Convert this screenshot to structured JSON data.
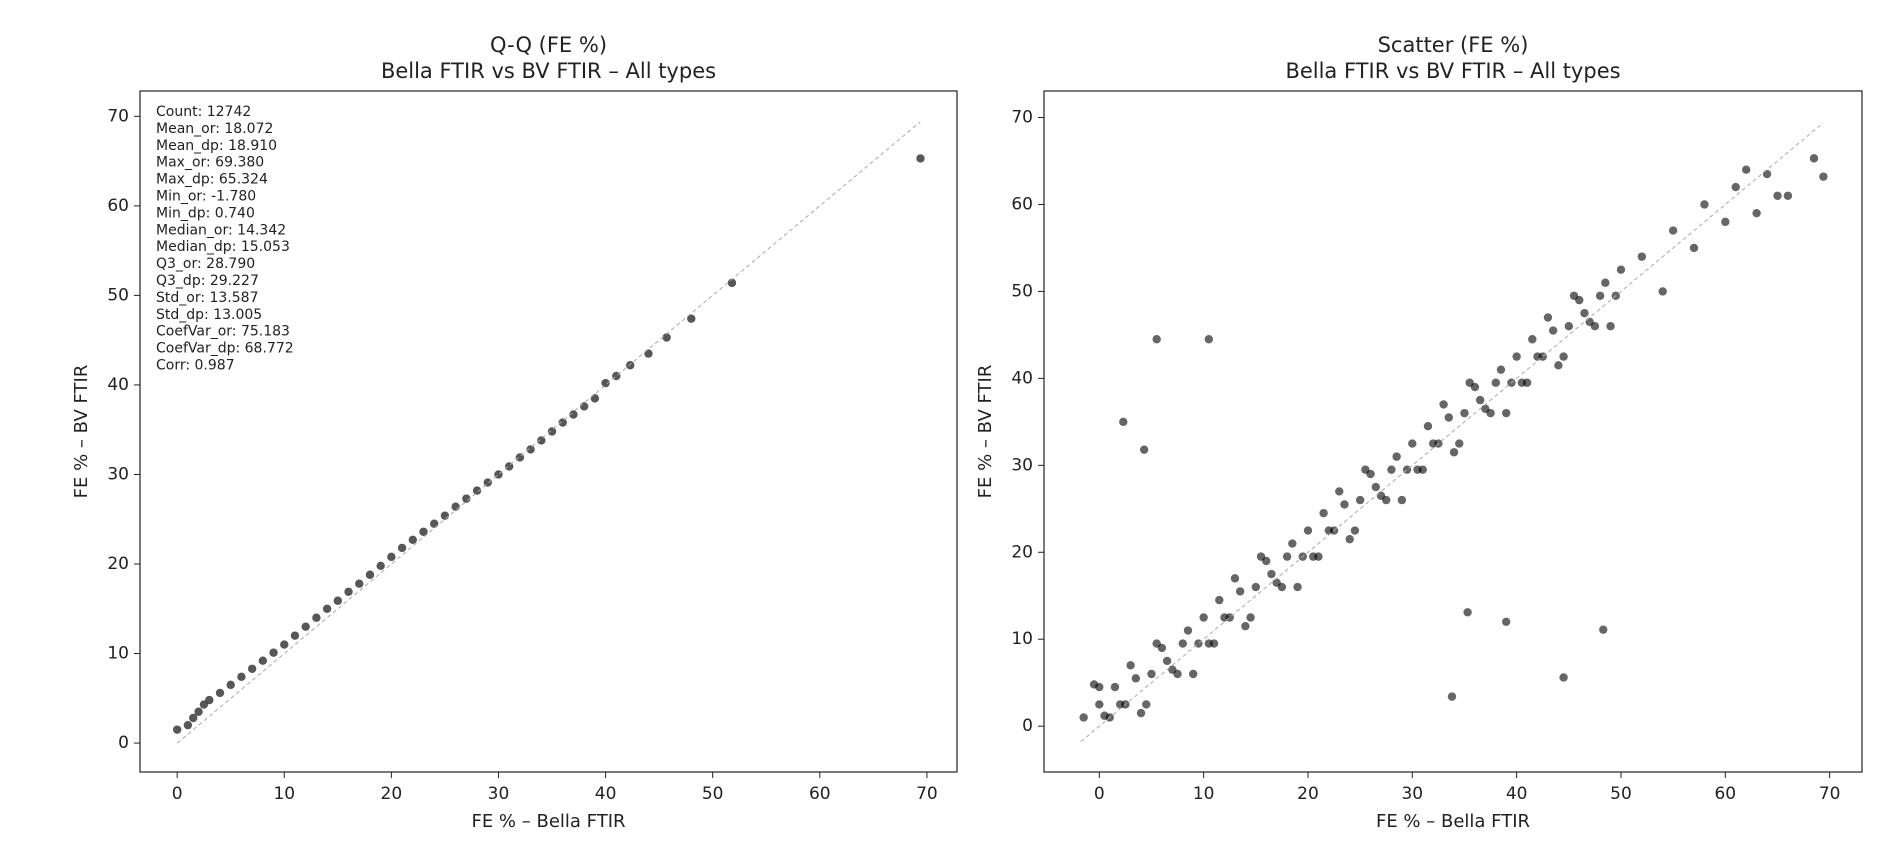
{
  "chart_data": [
    {
      "type": "scatter",
      "title": "Q-Q (FE %)",
      "subtitle": "Bella FTIR vs BV FTIR – All types",
      "xlabel": "FE % – Bella FTIR",
      "ylabel": "FE % – BV FTIR",
      "color": "#3a3a3a",
      "alpha": 0.85,
      "annotation": [
        "Count: 12742",
        "Mean_or: 18.072",
        "Mean_dp: 18.910",
        "Max_or: 69.380",
        "Max_dp: 65.324",
        "Min_or: -1.780",
        "Min_dp: 0.740",
        "Median_or: 14.342",
        "Median_dp: 15.053",
        "Q3_or: 28.790",
        "Q3_dp: 29.227",
        "Std_or: 13.587",
        "Std_dp: 13.005",
        "CoefVar_or: 75.183",
        "CoefVar_dp: 68.772",
        "Corr: 0.987"
      ],
      "x": [
        0,
        1,
        1.5,
        2,
        2.5,
        3,
        4,
        5,
        6,
        7,
        8,
        9,
        10,
        11,
        12,
        13,
        14,
        15,
        16,
        17,
        18,
        19,
        20,
        21,
        22,
        23,
        24,
        25,
        26,
        27,
        28,
        29,
        30,
        31,
        32,
        33,
        34,
        35,
        36,
        37,
        38,
        39,
        40,
        41,
        42.3,
        44,
        45.7,
        48,
        51.8,
        69.4
      ],
      "y": [
        1.5,
        2,
        2.8,
        3.5,
        4.3,
        4.8,
        5.6,
        6.5,
        7.4,
        8.3,
        9.2,
        10.1,
        11,
        12,
        13,
        14,
        15,
        15.9,
        16.9,
        17.8,
        18.8,
        19.8,
        20.8,
        21.8,
        22.7,
        23.6,
        24.5,
        25.4,
        26.4,
        27.3,
        28.2,
        29.1,
        30,
        30.9,
        31.9,
        32.8,
        33.8,
        34.8,
        35.8,
        36.7,
        37.6,
        38.5,
        40.2,
        41,
        42.2,
        43.5,
        45.3,
        47.4,
        51.4,
        65.3
      ],
      "ref_line": {
        "x": [
          0,
          69.38
        ],
        "y": [
          0,
          69.38
        ]
      },
      "xlim": [
        -3.47,
        72.81
      ],
      "ylim": [
        -3.23,
        72.83
      ],
      "xticks": [
        0,
        10,
        20,
        30,
        40,
        50,
        60,
        70
      ],
      "yticks": [
        0,
        10,
        20,
        30,
        40,
        50,
        60,
        70
      ]
    },
    {
      "type": "scatter",
      "title": "Scatter (FE %)",
      "subtitle": "Bella FTIR vs BV FTIR – All types",
      "xlabel": "FE % – Bella FTIR",
      "ylabel": "FE % – BV FTIR",
      "color": "#000000",
      "alpha": 0.6,
      "x": [
        0,
        1,
        2,
        3,
        4,
        5,
        6,
        7,
        8,
        9,
        10,
        11,
        12,
        13,
        14,
        15,
        16,
        17,
        18,
        19,
        20,
        21,
        22,
        23,
        24,
        25,
        26,
        27,
        28,
        29,
        30,
        31,
        32,
        33,
        34,
        35,
        36,
        37,
        38,
        39,
        40,
        41,
        42,
        43,
        44,
        45,
        46,
        47,
        48,
        49,
        50,
        0.5,
        1.5,
        2.5,
        3.5,
        4.5,
        5.5,
        6.5,
        7.5,
        8.5,
        9.5,
        10.5,
        11.5,
        12.5,
        13.5,
        14.5,
        15.5,
        16.5,
        17.5,
        18.5,
        19.5,
        20.5,
        21.5,
        22.5,
        23.5,
        24.5,
        25.5,
        26.5,
        27.5,
        28.5,
        29.5,
        30.5,
        31.5,
        32.5,
        33.5,
        34.5,
        35.5,
        36.5,
        37.5,
        38.5,
        39.5,
        40.5,
        41.5,
        42.5,
        43.5,
        44.5,
        45.5,
        46.5,
        47.5,
        48.5,
        49.5,
        52,
        54,
        55,
        57,
        58,
        60,
        61,
        63,
        64,
        65,
        66,
        68.5,
        69.4,
        62,
        -1.5,
        -0.5,
        0,
        5.5,
        10.5,
        2.3,
        4.3,
        35.3,
        39,
        48.3,
        33.8,
        44.5
      ],
      "y": [
        2.5,
        1,
        2.5,
        7,
        1.5,
        6,
        9,
        6.5,
        9.5,
        6,
        12.5,
        9.5,
        12.5,
        17,
        11.5,
        16,
        19,
        16.5,
        19.5,
        16,
        22.5,
        19.5,
        22.5,
        27,
        21.5,
        26,
        29,
        26.5,
        29.5,
        26,
        32.5,
        29.5,
        32.5,
        37,
        31.5,
        36,
        39,
        36.5,
        39.5,
        36,
        42.5,
        39.5,
        42.5,
        47,
        41.5,
        46,
        49,
        46.5,
        49.5,
        46,
        52.5,
        1.2,
        4.5,
        2.5,
        5.5,
        2.5,
        9.5,
        7.5,
        6,
        11,
        9.5,
        9.5,
        14.5,
        12.5,
        15.5,
        12.5,
        19.5,
        17.5,
        16,
        21,
        19.5,
        19.5,
        24.5,
        22.5,
        25.5,
        22.5,
        29.5,
        27.5,
        26,
        31,
        29.5,
        29.5,
        34.5,
        32.5,
        35.5,
        32.5,
        39.5,
        37.5,
        36,
        41,
        39.5,
        39.5,
        44.5,
        42.5,
        45.5,
        42.5,
        49.5,
        47.5,
        46,
        51,
        49.5,
        54,
        50,
        57,
        55,
        60,
        58,
        62,
        59,
        63.5,
        61,
        61,
        65.3,
        63.2,
        64,
        1,
        4.8,
        4.5,
        44.5,
        44.5,
        35,
        31.8,
        13.1,
        12,
        11.1,
        3.4,
        5.6
      ],
      "ref_line": {
        "x": [
          -1.78,
          69.38
        ],
        "y": [
          -1.78,
          69.38
        ]
      },
      "xlim": [
        -5.3,
        73.1
      ],
      "ylim": [
        -5.27,
        73.05
      ],
      "xticks": [
        0,
        10,
        20,
        30,
        40,
        50,
        60,
        70
      ],
      "yticks": [
        0,
        10,
        20,
        30,
        40,
        50,
        60,
        70
      ]
    }
  ]
}
